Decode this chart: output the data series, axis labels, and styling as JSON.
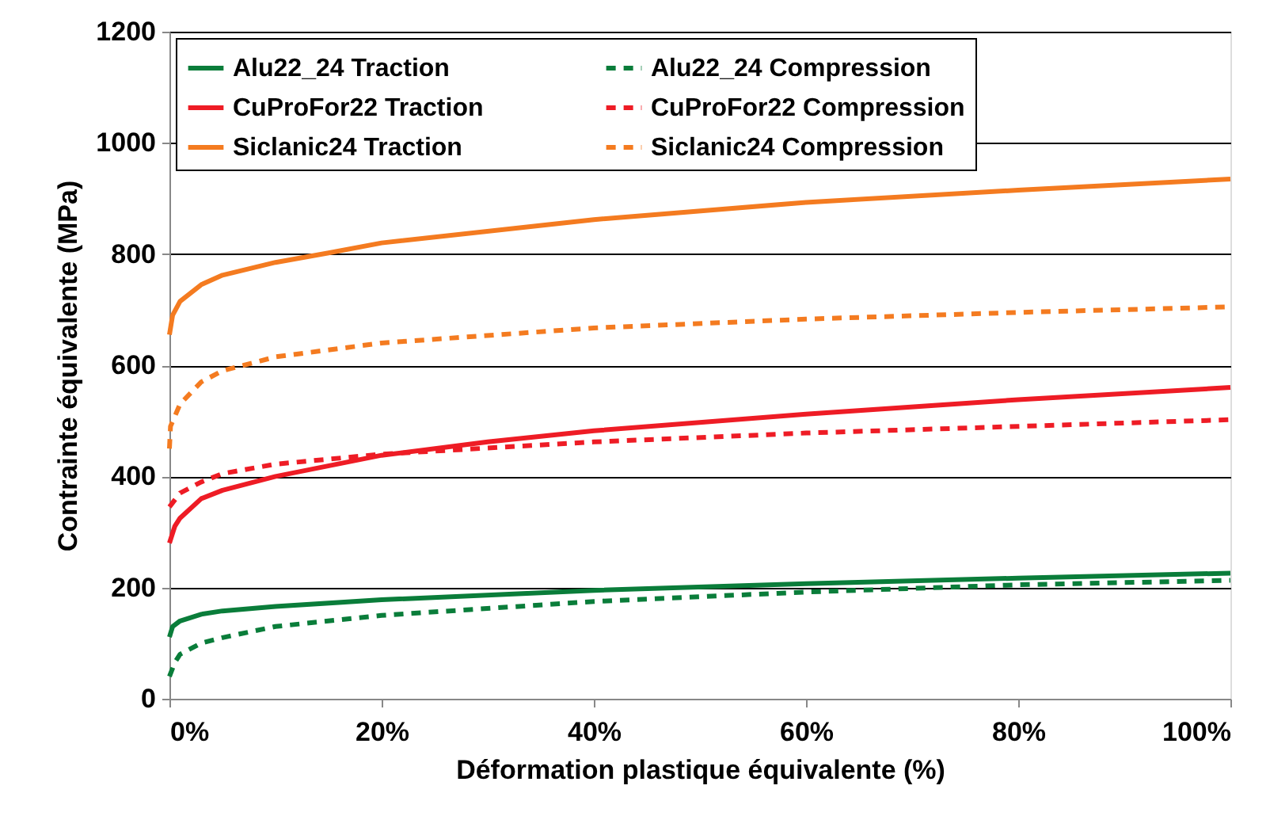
{
  "chart_data": {
    "type": "line",
    "xlabel": "Déformation plastique équivalente (%)",
    "ylabel": "Contrainte équivalente (MPa)",
    "xlim": [
      0,
      100
    ],
    "xticks": [
      {
        "value": 0,
        "label": "0%"
      },
      {
        "value": 20,
        "label": "20%"
      },
      {
        "value": 40,
        "label": "40%"
      },
      {
        "value": 60,
        "label": "60%"
      },
      {
        "value": 80,
        "label": "80%"
      },
      {
        "value": 100,
        "label": "100%"
      }
    ],
    "ylim": [
      0,
      1200
    ],
    "yticks": [
      0,
      200,
      400,
      600,
      800,
      1000,
      1200
    ],
    "grid": "y",
    "legend": "top left",
    "marker": "none",
    "x": [
      0,
      0.3,
      1,
      3,
      5,
      10,
      20,
      40,
      60,
      80,
      100
    ],
    "series": [
      {
        "name": "Alu22_24 Traction",
        "color": "#0a7d3a",
        "line_style": "solid",
        "values": [
          111,
          130,
          140,
          152,
          158,
          166,
          178,
          195,
          207,
          217,
          226
        ]
      },
      {
        "name": "Alu22_24 Compression",
        "color": "#0a7d3a",
        "line_style": "dashed",
        "x": [
          0,
          0.5,
          1,
          3,
          5,
          10,
          20,
          40,
          60,
          80,
          100
        ],
        "values": [
          40,
          65,
          80,
          100,
          110,
          130,
          150,
          175,
          192,
          205,
          213
        ]
      },
      {
        "name": "CuProFor22 Traction",
        "color": "#ee1c25",
        "line_style": "solid",
        "x": [
          0,
          0.5,
          1,
          3,
          5,
          10,
          20,
          30,
          40,
          60,
          80,
          100
        ],
        "values": [
          280,
          310,
          325,
          360,
          375,
          400,
          438,
          462,
          482,
          512,
          538,
          560
        ]
      },
      {
        "name": "CuProFor22 Compression",
        "color": "#ee1c25",
        "line_style": "dashed",
        "x": [
          0,
          1,
          3,
          5,
          10,
          20,
          40,
          60,
          80,
          100
        ],
        "values": [
          345,
          370,
          390,
          405,
          422,
          440,
          462,
          478,
          490,
          502
        ]
      },
      {
        "name": "Siclanic24 Traction",
        "color": "#f47b20",
        "line_style": "solid",
        "x": [
          0,
          0.3,
          1,
          3,
          5,
          10,
          15,
          20,
          40,
          60,
          80,
          100
        ],
        "values": [
          655,
          690,
          715,
          745,
          762,
          785,
          802,
          820,
          862,
          893,
          915,
          935
        ]
      },
      {
        "name": "Siclanic24 Compression",
        "color": "#f47b20",
        "line_style": "dashed",
        "x": [
          0,
          0.1,
          1,
          3,
          5,
          10,
          20,
          40,
          60,
          80,
          100
        ],
        "values": [
          450,
          490,
          530,
          570,
          590,
          615,
          640,
          667,
          683,
          695,
          705
        ]
      }
    ]
  }
}
